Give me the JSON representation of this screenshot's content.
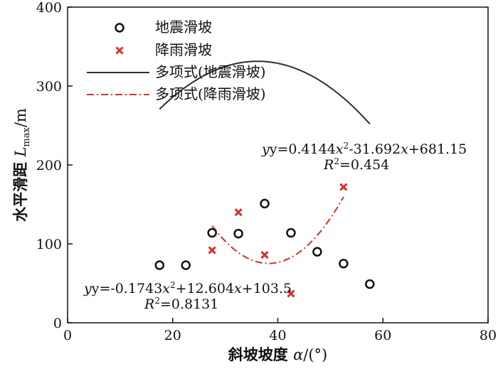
{
  "chart_data": {
    "type": "scatter",
    "xlabel": "斜坡坡度 α/(°)",
    "ylabel": "水平滑距 Lmax/m",
    "xlim": [
      0,
      80
    ],
    "ylim": [
      0,
      400
    ],
    "xticks": [
      0,
      20,
      40,
      60,
      80
    ],
    "yticks": [
      0,
      100,
      200,
      300,
      400
    ],
    "grid": false,
    "legend_position": "top-left",
    "series": [
      {
        "name": "地震滑坡",
        "marker": "open-circle",
        "color": "#111111",
        "points": [
          [
            17.5,
            73
          ],
          [
            22.5,
            73
          ],
          [
            27.5,
            114
          ],
          [
            32.5,
            113
          ],
          [
            37.5,
            151
          ],
          [
            42.5,
            114
          ],
          [
            47.5,
            90
          ],
          [
            52.5,
            75
          ],
          [
            57.5,
            49
          ]
        ]
      },
      {
        "name": "降雨滑坡",
        "marker": "x",
        "color": "#d9302a",
        "points": [
          [
            27.5,
            92
          ],
          [
            32.5,
            140
          ],
          [
            37.5,
            86
          ],
          [
            42.5,
            37
          ],
          [
            52.5,
            172
          ]
        ]
      }
    ],
    "fits": [
      {
        "name": "多项式(地震滑坡)",
        "style": "solid",
        "color": "#3a2a2a",
        "coefficients": {
          "a": -0.1743,
          "b": 12.604,
          "c": 103.5
        },
        "x_range": [
          17.5,
          57.5
        ]
      },
      {
        "name": "多项式(降雨滑坡)",
        "style": "dash-dot",
        "color": "#d9302a",
        "coefficients": {
          "a": 0.4144,
          "b": -31.692,
          "c": 681.15
        },
        "x_range": [
          27.5,
          52.5
        ]
      }
    ],
    "annotations": {
      "eq_earthquake": {
        "prefix": "y=-0.1743",
        "x2": "x",
        "sup": "2",
        "mid": "+12.604",
        "x1": "x",
        "suffix": "+103.5",
        "r2_prefix": "R",
        "r2_sup": "2",
        "r2_value": "=0.8131"
      },
      "eq_rainfall": {
        "prefix": "y=0.4144",
        "x2": "x",
        "sup": "2",
        "mid": "-31.692",
        "x1": "x",
        "suffix": "+681.15",
        "r2_prefix": "R",
        "r2_sup": "2",
        "r2_value": "=0.454"
      }
    }
  }
}
